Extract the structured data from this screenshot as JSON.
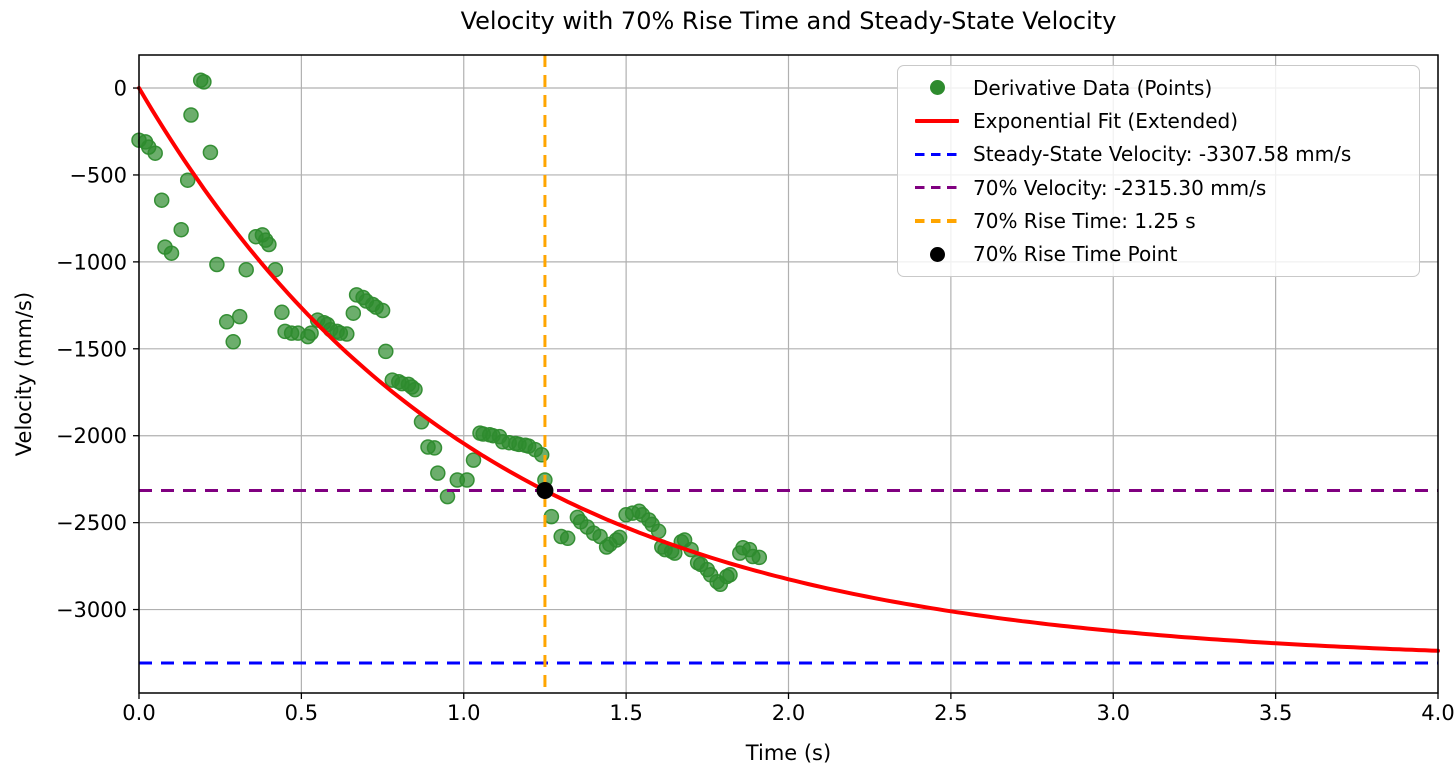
{
  "chart_data": {
    "type": "scatter",
    "title": "Velocity with 70% Rise Time and Steady-State Velocity",
    "xlabel": "Time (s)",
    "ylabel": "Velocity (mm/s)",
    "xlim": [
      0,
      4
    ],
    "ylim": [
      -3480,
      190
    ],
    "x_ticks": [
      0,
      0.5,
      1,
      1.5,
      2,
      2.5,
      3,
      3.5,
      4
    ],
    "x_tick_labels": [
      "0.0",
      "0.5",
      "1.0",
      "1.5",
      "2.0",
      "2.5",
      "3.0",
      "3.5",
      "4.0"
    ],
    "y_ticks": [
      0,
      -500,
      -1000,
      -1500,
      -2000,
      -2500,
      -3000
    ],
    "y_tick_labels": [
      "0",
      "−500",
      "−1000",
      "−1500",
      "−2000",
      "−2500",
      "−3000"
    ],
    "grid": true,
    "grid_color": "#b0b0b0",
    "legend_position": "upper right",
    "series": [
      {
        "name": "Derivative Data (Points)",
        "type": "scatter",
        "marker": "circle",
        "color": "#2e8b2e",
        "points": [
          [
            0.0,
            -300
          ],
          [
            0.02,
            -310
          ],
          [
            0.03,
            -340
          ],
          [
            0.05,
            -375
          ],
          [
            0.07,
            -645
          ],
          [
            0.08,
            -915
          ],
          [
            0.1,
            -950
          ],
          [
            0.13,
            -815
          ],
          [
            0.15,
            -530
          ],
          [
            0.16,
            -155
          ],
          [
            0.19,
            45
          ],
          [
            0.2,
            35
          ],
          [
            0.22,
            -370
          ],
          [
            0.24,
            -1015
          ],
          [
            0.27,
            -1345
          ],
          [
            0.29,
            -1460
          ],
          [
            0.31,
            -1315
          ],
          [
            0.33,
            -1045
          ],
          [
            0.36,
            -855
          ],
          [
            0.38,
            -845
          ],
          [
            0.39,
            -875
          ],
          [
            0.4,
            -900
          ],
          [
            0.42,
            -1045
          ],
          [
            0.44,
            -1290
          ],
          [
            0.45,
            -1400
          ],
          [
            0.47,
            -1410
          ],
          [
            0.49,
            -1410
          ],
          [
            0.52,
            -1430
          ],
          [
            0.53,
            -1410
          ],
          [
            0.55,
            -1335
          ],
          [
            0.57,
            -1350
          ],
          [
            0.58,
            -1360
          ],
          [
            0.59,
            -1390
          ],
          [
            0.61,
            -1400
          ],
          [
            0.62,
            -1410
          ],
          [
            0.64,
            -1415
          ],
          [
            0.66,
            -1295
          ],
          [
            0.67,
            -1190
          ],
          [
            0.69,
            -1205
          ],
          [
            0.7,
            -1225
          ],
          [
            0.72,
            -1245
          ],
          [
            0.73,
            -1260
          ],
          [
            0.75,
            -1280
          ],
          [
            0.76,
            -1515
          ],
          [
            0.78,
            -1680
          ],
          [
            0.8,
            -1690
          ],
          [
            0.81,
            -1700
          ],
          [
            0.83,
            -1705
          ],
          [
            0.84,
            -1720
          ],
          [
            0.85,
            -1735
          ],
          [
            0.87,
            -1920
          ],
          [
            0.89,
            -2065
          ],
          [
            0.91,
            -2070
          ],
          [
            0.92,
            -2215
          ],
          [
            0.95,
            -2350
          ],
          [
            0.98,
            -2255
          ],
          [
            1.01,
            -2255
          ],
          [
            1.03,
            -2140
          ],
          [
            1.05,
            -1985
          ],
          [
            1.06,
            -1990
          ],
          [
            1.08,
            -1995
          ],
          [
            1.09,
            -2000
          ],
          [
            1.11,
            -2005
          ],
          [
            1.12,
            -2035
          ],
          [
            1.14,
            -2040
          ],
          [
            1.16,
            -2045
          ],
          [
            1.17,
            -2050
          ],
          [
            1.19,
            -2055
          ],
          [
            1.2,
            -2060
          ],
          [
            1.22,
            -2080
          ],
          [
            1.24,
            -2110
          ],
          [
            1.25,
            -2255
          ],
          [
            1.27,
            -2465
          ],
          [
            1.3,
            -2580
          ],
          [
            1.32,
            -2590
          ],
          [
            1.35,
            -2470
          ],
          [
            1.36,
            -2495
          ],
          [
            1.38,
            -2525
          ],
          [
            1.4,
            -2560
          ],
          [
            1.42,
            -2580
          ],
          [
            1.44,
            -2640
          ],
          [
            1.45,
            -2625
          ],
          [
            1.47,
            -2600
          ],
          [
            1.48,
            -2585
          ],
          [
            1.5,
            -2455
          ],
          [
            1.52,
            -2445
          ],
          [
            1.54,
            -2435
          ],
          [
            1.55,
            -2455
          ],
          [
            1.57,
            -2485
          ],
          [
            1.58,
            -2510
          ],
          [
            1.6,
            -2550
          ],
          [
            1.61,
            -2640
          ],
          [
            1.62,
            -2655
          ],
          [
            1.64,
            -2665
          ],
          [
            1.65,
            -2675
          ],
          [
            1.67,
            -2610
          ],
          [
            1.68,
            -2600
          ],
          [
            1.7,
            -2655
          ],
          [
            1.72,
            -2730
          ],
          [
            1.73,
            -2740
          ],
          [
            1.75,
            -2770
          ],
          [
            1.76,
            -2800
          ],
          [
            1.78,
            -2840
          ],
          [
            1.79,
            -2855
          ],
          [
            1.81,
            -2810
          ],
          [
            1.82,
            -2800
          ],
          [
            1.85,
            -2675
          ],
          [
            1.86,
            -2645
          ],
          [
            1.88,
            -2655
          ],
          [
            1.89,
            -2695
          ],
          [
            1.91,
            -2700
          ]
        ]
      },
      {
        "name": "Exponential Fit (Extended)",
        "type": "line",
        "color": "#ff0000",
        "formula": "v(t) = v_steady * (1 - exp(-t/tau))",
        "v_steady": -3307.58,
        "tau": 1.0383,
        "t_range": [
          0,
          4
        ]
      },
      {
        "name": "Steady-State Velocity: -3307.58 mm/s",
        "type": "hline",
        "linestyle": "dashed",
        "color": "#0000ff",
        "value": -3307.58
      },
      {
        "name": "70% Velocity: -2315.30 mm/s",
        "type": "hline",
        "linestyle": "dashed",
        "color": "#800080",
        "value": -2315.3
      },
      {
        "name": "70% Rise Time: 1.25 s",
        "type": "vline",
        "linestyle": "dashed",
        "color": "#ffa500",
        "value": 1.25
      },
      {
        "name": "70% Rise Time Point",
        "type": "point",
        "color": "#000000",
        "point": [
          1.25,
          -2315.3
        ]
      }
    ]
  }
}
